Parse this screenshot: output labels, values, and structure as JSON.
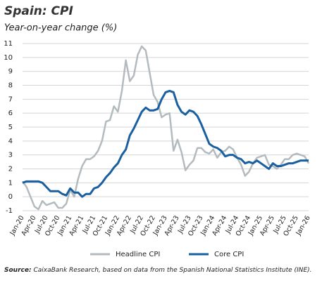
{
  "chart_data": {
    "type": "line",
    "title": "Spain: CPI",
    "subtitle": "Year-on-year change (%)",
    "categories": [
      "Jan-20",
      null,
      null,
      "Apr-20",
      null,
      null,
      "Jul-20",
      null,
      null,
      "Oct-20",
      null,
      null,
      "Jan-21",
      null,
      null,
      "Apr-21",
      null,
      null,
      "Jul-21",
      null,
      null,
      "Oct-21",
      null,
      null,
      "Jan-22",
      null,
      null,
      "Apr-22",
      null,
      null,
      "Jul-22",
      null,
      null,
      "Oct-22",
      null,
      null,
      "Jan-23",
      null,
      null,
      "Apr-23",
      null,
      null,
      "Jul-23",
      null,
      null,
      "Oct-23",
      null,
      null,
      "Jan-24",
      null,
      null,
      "Apr-24",
      null,
      null,
      "Jul-24",
      null,
      null,
      "Oct-24",
      null,
      null,
      "Jan-25",
      null,
      null,
      "Apr-25",
      null,
      null,
      "Jul-25",
      null,
      null,
      "Oct-25",
      null,
      null,
      "Jan-26"
    ],
    "series": [
      {
        "name": "Headline CPI",
        "color": "#b3bbbf",
        "values": [
          1.1,
          0.7,
          0.0,
          -0.7,
          -0.9,
          -0.3,
          -0.6,
          -0.5,
          -0.4,
          -0.8,
          -0.8,
          -0.5,
          0.5,
          0.0,
          1.3,
          2.2,
          2.7,
          2.7,
          2.9,
          3.3,
          4.0,
          5.4,
          5.5,
          6.5,
          6.1,
          7.6,
          9.8,
          8.3,
          8.7,
          10.2,
          10.8,
          10.5,
          8.9,
          7.3,
          6.8,
          5.7,
          5.9,
          6.0,
          3.3,
          4.1,
          3.2,
          1.9,
          2.3,
          2.6,
          3.5,
          3.5,
          3.2,
          3.1,
          3.4,
          2.8,
          3.2,
          3.3,
          3.6,
          3.4,
          2.8,
          2.3,
          1.5,
          1.8,
          2.4,
          2.8,
          2.9,
          3.0,
          2.3,
          2.2,
          2.0,
          2.3,
          2.7,
          2.7,
          3.0,
          3.1,
          3.0,
          2.9,
          2.4
        ]
      },
      {
        "name": "Core CPI",
        "color": "#1a5fa0",
        "values": [
          1.0,
          1.1,
          1.1,
          1.1,
          1.1,
          1.0,
          0.7,
          0.4,
          0.4,
          0.4,
          0.2,
          0.1,
          0.6,
          0.3,
          0.3,
          0.0,
          0.2,
          0.2,
          0.6,
          0.7,
          1.0,
          1.4,
          1.7,
          2.1,
          2.4,
          3.0,
          3.4,
          4.4,
          4.9,
          5.5,
          6.1,
          6.4,
          6.2,
          6.2,
          6.3,
          7.0,
          7.5,
          7.6,
          7.5,
          6.6,
          6.1,
          5.9,
          6.2,
          6.1,
          5.8,
          5.2,
          4.5,
          3.8,
          3.6,
          3.5,
          3.3,
          2.9,
          3.0,
          3.0,
          2.8,
          2.7,
          2.4,
          2.5,
          2.4,
          2.6,
          2.4,
          2.2,
          2.0,
          2.4,
          2.2,
          2.2,
          2.3,
          2.4,
          2.4,
          2.5,
          2.6,
          2.6,
          2.6
        ]
      }
    ],
    "ylim": [
      -1,
      11
    ],
    "yticks": [
      -1,
      0,
      1,
      2,
      3,
      4,
      5,
      6,
      7,
      8,
      9,
      10,
      11
    ],
    "grid": true,
    "legend": "bottom",
    "source_label": "Source:",
    "source_text": "CaixaBank Research, based on data from the Spanish National Statistics Institute (INE)."
  }
}
